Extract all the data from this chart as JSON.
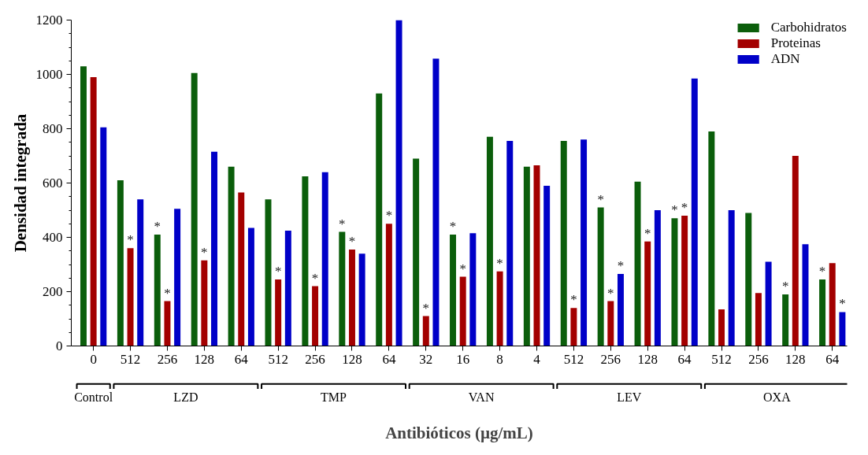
{
  "chart_data": {
    "type": "bar",
    "xlabel": "Antibióticos (µg/mL)",
    "ylabel": "Densidad integrada",
    "categories": [
      "0",
      "512",
      "256",
      "128",
      "64",
      "512",
      "256",
      "128",
      "64",
      "32",
      "16",
      "8",
      "4",
      "512",
      "256",
      "128",
      "64",
      "512",
      "256",
      "128",
      "64"
    ],
    "series": [
      {
        "name": "Carbohidratos",
        "color": "#0b5e0b",
        "values": [
          1030,
          610,
          410,
          1005,
          660,
          540,
          625,
          420,
          930,
          690,
          410,
          770,
          660,
          755,
          510,
          605,
          470,
          790,
          490,
          190,
          245
        ],
        "value_labels": [
          null,
          null,
          "*",
          null,
          null,
          null,
          null,
          "*",
          null,
          null,
          "*",
          null,
          null,
          null,
          "*",
          null,
          "*",
          null,
          null,
          "*",
          "*"
        ]
      },
      {
        "name": "Proteinas",
        "color": "#a30000",
        "values": [
          990,
          360,
          165,
          315,
          565,
          245,
          220,
          355,
          450,
          110,
          255,
          275,
          665,
          140,
          165,
          385,
          480,
          135,
          195,
          700,
          305
        ],
        "value_labels": [
          null,
          "*",
          "*",
          "*",
          null,
          "*",
          "*",
          "*",
          "*",
          "*",
          "*",
          "*",
          null,
          "*",
          "*",
          "*",
          "*",
          null,
          null,
          null,
          null
        ]
      },
      {
        "name": "ADN",
        "color": "#0000c8",
        "values": [
          805,
          540,
          505,
          715,
          435,
          425,
          640,
          340,
          1200,
          1058,
          415,
          755,
          590,
          760,
          265,
          500,
          985,
          500,
          310,
          375,
          125
        ],
        "value_labels": [
          null,
          null,
          null,
          null,
          null,
          null,
          null,
          null,
          null,
          null,
          null,
          null,
          null,
          null,
          "*",
          null,
          null,
          null,
          null,
          null,
          "*"
        ]
      }
    ],
    "ylim": [
      0,
      1200
    ],
    "yticks": [
      0,
      200,
      400,
      600,
      800,
      1000,
      1200
    ],
    "grid": false,
    "legend": "top right",
    "annotations": [
      "Control",
      "LZD",
      "TMP",
      "VAN",
      "LEV",
      "OXA"
    ]
  }
}
